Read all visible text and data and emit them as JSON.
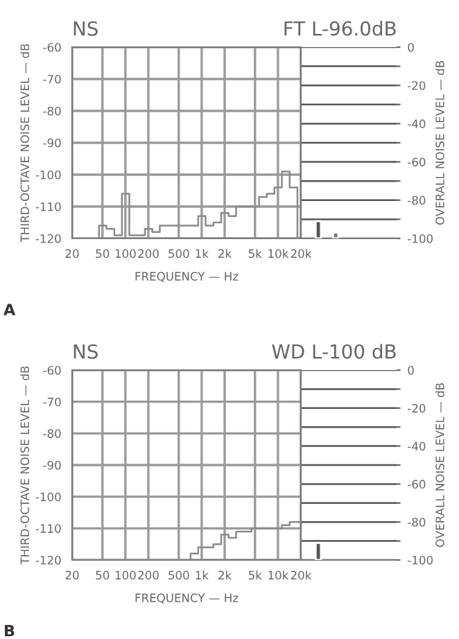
{
  "chart_data": [
    {
      "type": "step",
      "title": "NS",
      "ylabel": "THIRD-OCTAVE NOISE LEVEL — dB",
      "xlabel": "FREQUENCY — Hz",
      "annotations": [
        "FT L-96.0dB",
        "A"
      ],
      "log": "x",
      "grid": true,
      "marker": "none",
      "line_style": "solid",
      "x": [
        20,
        25,
        31.5,
        40,
        50,
        63,
        80,
        100,
        125,
        160,
        200,
        250,
        315,
        400,
        500,
        630,
        800,
        1000,
        1250,
        1600,
        2000,
        2500,
        3150,
        4000,
        5000,
        6300,
        8000,
        10000,
        12500,
        16000,
        20000
      ],
      "series": [
        {
          "color": "#8a8a8a",
          "values": [
            -120,
            -120,
            -120,
            -120,
            -116,
            -117,
            -119,
            -106,
            -119,
            -119,
            -117,
            -118,
            -116,
            -116,
            -116,
            -116,
            -116,
            -113,
            -116,
            -115,
            -112,
            -113,
            -110,
            -110,
            -110,
            -107,
            -106,
            -104,
            -99,
            -104,
            -120
          ]
        }
      ],
      "xlim": [
        20,
        20000
      ],
      "xticks": [
        20,
        50,
        100,
        200,
        500,
        {
          "value": 1000,
          "label": "1k"
        },
        {
          "value": 2000,
          "label": "2k"
        },
        {
          "value": 5000,
          "label": "5k"
        },
        {
          "value": 10000,
          "label": "10k"
        },
        {
          "value": 20000,
          "label": "20k"
        }
      ],
      "ylim": [
        -120,
        -60
      ],
      "yticks": [
        -120,
        -110,
        -100,
        -90,
        -80,
        -70,
        -60
      ]
    },
    {
      "type": "bar",
      "ylabel": "OVERALL NOISE LEVEL — dB",
      "categories": [
        null,
        null
      ],
      "values": [
        9,
        3
      ],
      "base": [
        -100,
        -100
      ],
      "colors": [
        "#555555",
        "#777777"
      ],
      "grid": "y",
      "tick_labels": "y",
      "ylim": [
        -100,
        0
      ],
      "yticks": [
        -100,
        {
          "value": -90,
          "label": null
        },
        -80,
        {
          "value": -70,
          "label": null
        },
        -60,
        {
          "value": -50,
          "label": null
        },
        -40,
        {
          "value": -30,
          "label": null
        },
        -20,
        {
          "value": -10,
          "label": null
        },
        0
      ]
    },
    {
      "type": "step",
      "title": "NS",
      "ylabel": "THIRD-OCTAVE NOISE LEVEL — dB",
      "xlabel": "FREQUENCY — Hz",
      "annotations": [
        "WD L-100 dB",
        "B"
      ],
      "log": "x",
      "grid": true,
      "marker": "none",
      "line_style": "solid",
      "x": [
        20,
        25,
        31.5,
        40,
        50,
        63,
        80,
        100,
        125,
        160,
        200,
        250,
        315,
        400,
        500,
        630,
        800,
        1000,
        1250,
        1600,
        2000,
        2500,
        3150,
        4000,
        5000,
        6300,
        8000,
        10000,
        12500,
        16000,
        20000
      ],
      "series": [
        {
          "color": "#8a8a8a",
          "values": [
            -120,
            -120,
            -120,
            -120,
            -120,
            -120,
            -120,
            -120,
            -120,
            -120,
            -120,
            -120,
            -120,
            -120,
            -120,
            -120,
            -118,
            -116,
            -116,
            -115,
            -112,
            -113,
            -111,
            -111,
            -110,
            -110,
            -110,
            -110,
            -109,
            -108,
            -108
          ]
        }
      ],
      "xlim": [
        20,
        20000
      ],
      "xticks": [
        20,
        50,
        100,
        200,
        500,
        {
          "value": 1000,
          "label": "1k"
        },
        {
          "value": 2000,
          "label": "2k"
        },
        {
          "value": 5000,
          "label": "5k"
        },
        {
          "value": 10000,
          "label": "10k"
        },
        {
          "value": 20000,
          "label": "20k"
        }
      ],
      "ylim": [
        -120,
        -60
      ],
      "yticks": [
        -120,
        -110,
        -100,
        -90,
        -80,
        -70,
        -60
      ]
    },
    {
      "type": "bar",
      "ylabel": "OVERALL NOISE LEVEL — dB",
      "categories": [
        null,
        null
      ],
      "values": [
        9,
        null
      ],
      "base": [
        -100,
        null
      ],
      "colors": [
        "#555555",
        "#777777"
      ],
      "grid": "y",
      "tick_labels": "y",
      "ylim": [
        -100,
        0
      ],
      "yticks": [
        -100,
        {
          "value": -90,
          "label": null
        },
        -80,
        {
          "value": -70,
          "label": null
        },
        -60,
        {
          "value": -50,
          "label": null
        },
        -40,
        {
          "value": -30,
          "label": null
        },
        -20,
        {
          "value": -10,
          "label": null
        },
        0
      ]
    }
  ]
}
